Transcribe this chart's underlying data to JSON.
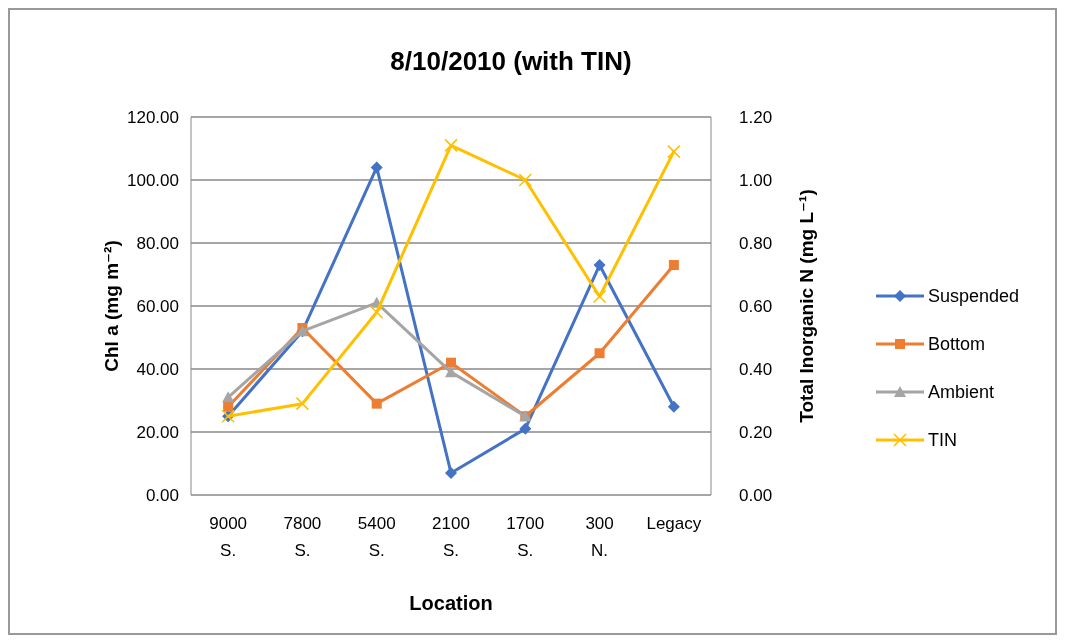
{
  "chart_data": {
    "type": "line",
    "title": "8/10/2010 (with TIN)",
    "xlabel": "Location",
    "ylabel": "Chl a (mg m⁻²)",
    "y2label": "Total Inorganic N (mg L⁻¹)",
    "categories": [
      "9000 S.",
      "7800 S.",
      "5400 S.",
      "2100 S.",
      "1700 S.",
      "300 N.",
      "Legacy"
    ],
    "series": [
      {
        "name": "Suspended",
        "color": "#4472c4",
        "marker": "diamond",
        "values": [
          25,
          52,
          104,
          7,
          21,
          73,
          28
        ]
      },
      {
        "name": "Bottom",
        "color": "#ed7d31",
        "marker": "square",
        "values": [
          28,
          53,
          29,
          42,
          25,
          45,
          73
        ]
      },
      {
        "name": "Ambient",
        "color": "#a5a5a5",
        "marker": "triangle",
        "values": [
          31,
          52,
          61,
          39,
          25,
          null,
          null
        ]
      },
      {
        "name": "TIN",
        "color": "#ffc000",
        "marker": "cross",
        "axis": "y2",
        "values": [
          0.25,
          0.29,
          0.58,
          1.11,
          1.0,
          0.63,
          1.09
        ]
      }
    ],
    "ylim": [
      0,
      120
    ],
    "yticks": [
      {
        "value": 0,
        "label": "0.00"
      },
      {
        "value": 20,
        "label": "20.00"
      },
      {
        "value": 40,
        "label": "40.00"
      },
      {
        "value": 60,
        "label": "60.00"
      },
      {
        "value": 80,
        "label": "80.00"
      },
      {
        "value": 100,
        "label": "100.00"
      },
      {
        "value": 120,
        "label": "120.00"
      }
    ],
    "y2lim": [
      0,
      1.2
    ],
    "y2ticks": [
      {
        "value": 0,
        "label": "0.00"
      },
      {
        "value": 0.2,
        "label": "0.20"
      },
      {
        "value": 0.4,
        "label": "0.40"
      },
      {
        "value": 0.6,
        "label": "0.60"
      },
      {
        "value": 0.8,
        "label": "0.80"
      },
      {
        "value": 1,
        "label": "1.00"
      },
      {
        "value": 1.2,
        "label": "1.20"
      }
    ],
    "grid": "y",
    "legend": "right"
  }
}
